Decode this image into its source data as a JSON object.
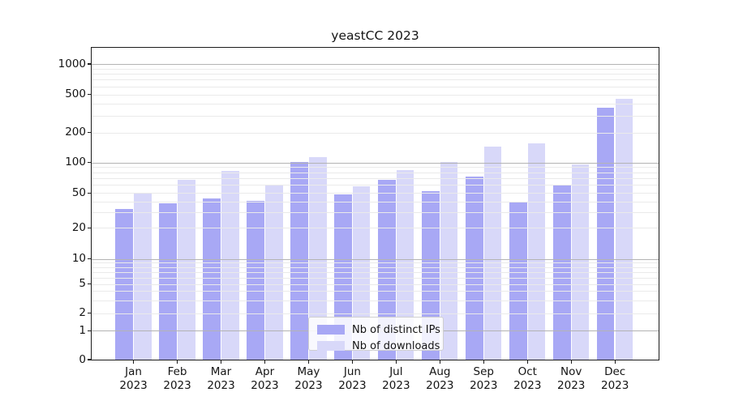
{
  "chart_data": {
    "type": "bar",
    "title": "yeastCC 2023",
    "categories": [
      "Jan 2023",
      "Feb 2023",
      "Mar 2023",
      "Apr 2023",
      "May 2023",
      "Jun 2023",
      "Jul 2023",
      "Aug 2023",
      "Sep 2023",
      "Oct 2023",
      "Nov 2023",
      "Dec 2023"
    ],
    "series": [
      {
        "name": "Nb of distinct IPs",
        "color": "#a8a8f5",
        "values": [
          33,
          38,
          43,
          41,
          102,
          48,
          68,
          52,
          72,
          40,
          60,
          365
        ]
      },
      {
        "name": "Nb of downloads",
        "color": "#d8d8f9",
        "values": [
          49,
          67,
          82,
          60,
          113,
          58,
          84,
          102,
          144,
          157,
          95,
          455
        ]
      }
    ],
    "yscale": "symlog",
    "yticks": [
      0,
      1,
      2,
      5,
      10,
      20,
      50,
      100,
      200,
      500,
      1000
    ],
    "ylim": [
      0,
      1460
    ],
    "grid": true,
    "legend_position": "lower center"
  },
  "styles": {
    "grid_major": "#b3b3b3",
    "grid_minor": "#eaeaea",
    "spine": "#1c1c1c",
    "text": "#141414",
    "legend_border": "#cfcfcf"
  }
}
